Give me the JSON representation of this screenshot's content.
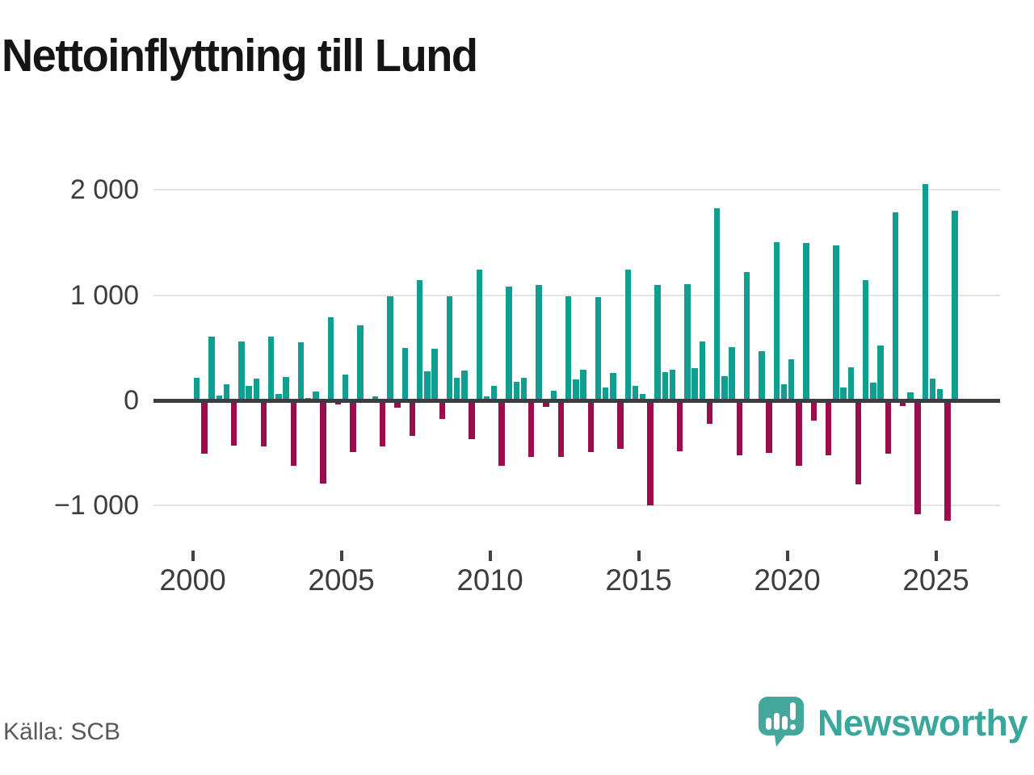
{
  "header": {
    "title": "Nettoinflyttning till Lund"
  },
  "footer": {
    "source_label": "Källa: SCB",
    "brand_name": "Newsworthy"
  },
  "colors": {
    "positive": "#0f9e90",
    "negative": "#9b0e4d",
    "zero_line": "#3b3e40",
    "gridline": "#e4e4e4",
    "brand_teal": "#3aa79c"
  },
  "chart_data": {
    "type": "bar",
    "title": "Nettoinflyttning till Lund",
    "grid": true,
    "legend_position": "none",
    "ylim": [
      -1250,
      2150
    ],
    "yticks": [
      {
        "value": 2000,
        "label": "2 000"
      },
      {
        "value": 1000,
        "label": "1 000"
      },
      {
        "value": 0,
        "label": "0"
      },
      {
        "value": -1000,
        "label": "−1 000"
      }
    ],
    "xticks": [
      {
        "label": "2000",
        "quarter_index": 0
      },
      {
        "label": "2005",
        "quarter_index": 20
      },
      {
        "label": "2010",
        "quarter_index": 40
      },
      {
        "label": "2015",
        "quarter_index": 60
      },
      {
        "label": "2020",
        "quarter_index": 80
      },
      {
        "label": "2025",
        "quarter_index": 100
      }
    ],
    "categories": [
      "2000Q1",
      "2000Q2",
      "2000Q3",
      "2000Q4",
      "2001Q1",
      "2001Q2",
      "2001Q3",
      "2001Q4",
      "2002Q1",
      "2002Q2",
      "2002Q3",
      "2002Q4",
      "2003Q1",
      "2003Q2",
      "2003Q3",
      "2003Q4",
      "2004Q1",
      "2004Q2",
      "2004Q3",
      "2004Q4",
      "2005Q1",
      "2005Q2",
      "2005Q3",
      "2005Q4",
      "2006Q1",
      "2006Q2",
      "2006Q3",
      "2006Q4",
      "2007Q1",
      "2007Q2",
      "2007Q3",
      "2007Q4",
      "2008Q1",
      "2008Q2",
      "2008Q3",
      "2008Q4",
      "2009Q1",
      "2009Q2",
      "2009Q3",
      "2009Q4",
      "2010Q1",
      "2010Q2",
      "2010Q3",
      "2010Q4",
      "2011Q1",
      "2011Q2",
      "2011Q3",
      "2011Q4",
      "2012Q1",
      "2012Q2",
      "2012Q3",
      "2012Q4",
      "2013Q1",
      "2013Q2",
      "2013Q3",
      "2013Q4",
      "2014Q1",
      "2014Q2",
      "2014Q3",
      "2014Q4",
      "2015Q1",
      "2015Q2",
      "2015Q3",
      "2015Q4",
      "2016Q1",
      "2016Q2",
      "2016Q3",
      "2016Q4",
      "2017Q1",
      "2017Q2",
      "2017Q3",
      "2017Q4",
      "2018Q1",
      "2018Q2",
      "2018Q3",
      "2018Q4",
      "2019Q1",
      "2019Q2",
      "2019Q3",
      "2019Q4",
      "2020Q1",
      "2020Q2",
      "2020Q3",
      "2020Q4",
      "2021Q1",
      "2021Q2",
      "2021Q3",
      "2021Q4",
      "2022Q1",
      "2022Q2",
      "2022Q3",
      "2022Q4",
      "2023Q1",
      "2023Q2",
      "2023Q3",
      "2023Q4",
      "2024Q1",
      "2024Q2",
      "2024Q3",
      "2024Q4",
      "2025Q1",
      "2025Q2",
      "2025Q3"
    ],
    "values": [
      215,
      -505,
      605,
      45,
      155,
      -430,
      560,
      135,
      205,
      -440,
      610,
      60,
      220,
      -625,
      555,
      25,
      85,
      -790,
      790,
      -40,
      245,
      -490,
      710,
      0,
      40,
      -435,
      990,
      -70,
      500,
      -335,
      1140,
      275,
      495,
      -175,
      990,
      215,
      285,
      -370,
      1245,
      40,
      140,
      -625,
      1085,
      180,
      215,
      -535,
      1100,
      -65,
      90,
      -535,
      990,
      200,
      290,
      -495,
      985,
      120,
      260,
      -460,
      1240,
      135,
      65,
      -1000,
      1100,
      270,
      295,
      -480,
      1105,
      310,
      560,
      -220,
      1825,
      230,
      510,
      -525,
      1220,
      0,
      470,
      -500,
      1505,
      150,
      390,
      -620,
      1500,
      -190,
      0,
      -520,
      1470,
      125,
      315,
      -800,
      1140,
      170,
      525,
      -510,
      1790,
      -50,
      75,
      -1080,
      2060,
      205,
      110,
      -1145,
      1805
    ]
  }
}
